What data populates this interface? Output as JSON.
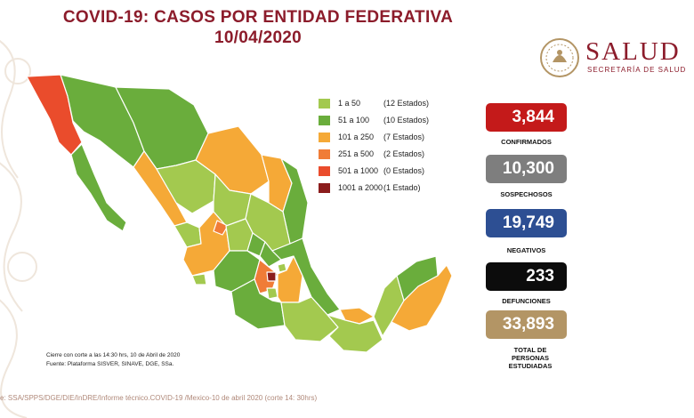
{
  "header": {
    "title_line1": "COVID-19: CASOS POR ENTIDAD FEDERATIVA",
    "title_line2": "10/04/2020"
  },
  "logo": {
    "wordmark": "SALUD",
    "subtitle": "SECRETARÍA DE SALUD"
  },
  "legend": [
    {
      "range": "1 a 50",
      "count": "(12 Estados)",
      "color": "#a3c94f"
    },
    {
      "range": "51 a 100",
      "count": "(10 Estados)",
      "color": "#6aad3c"
    },
    {
      "range": "101 a 250",
      "count": "(7 Estados)",
      "color": "#f5a937"
    },
    {
      "range": "251 a 500",
      "count": "(2 Estados)",
      "color": "#f07c37"
    },
    {
      "range": "501 a 1000",
      "count": "(0 Estados)",
      "color": "#ea4c2c"
    },
    {
      "range": "1001 a 2000",
      "count": "(1 Estado)",
      "color": "#8b1c1c"
    }
  ],
  "stats": [
    {
      "value": "3,844",
      "label": "CONFIRMADOS",
      "color": "#c41a1a"
    },
    {
      "value": "10,300",
      "label": "SOSPECHOSOS",
      "color": "#7e7e7e"
    },
    {
      "value": "19,749",
      "label": "NEGATIVOS",
      "color": "#2d4f93"
    },
    {
      "value": "233",
      "label": "DEFUNCIONES",
      "color": "#0c0c0c"
    },
    {
      "value": "33,893",
      "label": "TOTAL DE PERSONAS ESTUDIADAS",
      "color": "#b39565"
    }
  ],
  "footnote": {
    "line1": "Cierre con corte a las 14:30 hrs, 10 de Abril de 2020",
    "line2": "Fuente: Plataforma SISVER, SINAVE, DGE, SSa."
  },
  "source": "e: SSA/SPPS/DGE/DIE/InDRE/Informe técnico.COVID-19 /Mexico-10 de abril 2020 (corte 14: 30hrs)"
}
